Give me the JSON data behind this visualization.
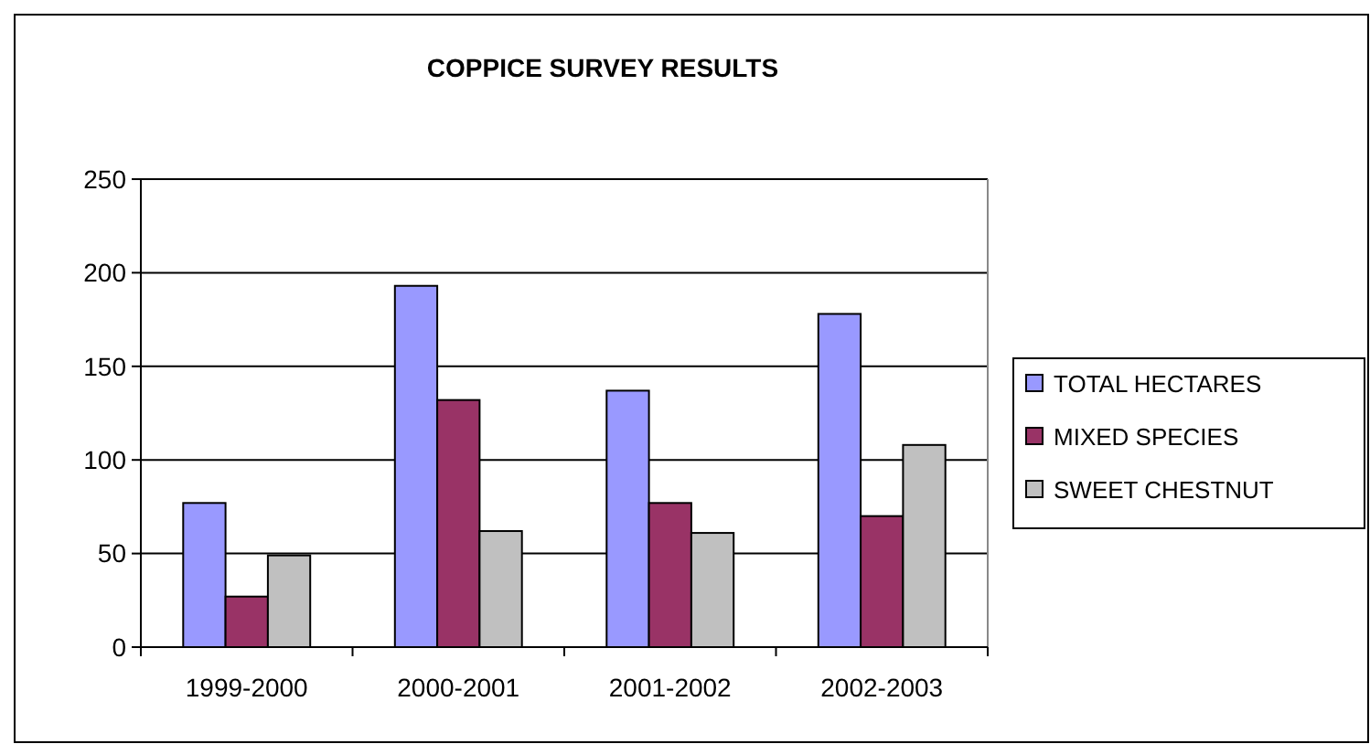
{
  "chart_data": {
    "type": "bar",
    "title": "COPPICE SURVEY RESULTS",
    "categories": [
      "1999-2000",
      "2000-2001",
      "2001-2002",
      "2002-2003"
    ],
    "series": [
      {
        "name": "TOTAL HECTARES",
        "color": "#9999ff",
        "values": [
          77,
          193,
          137,
          178
        ]
      },
      {
        "name": "MIXED SPECIES",
        "color": "#993366",
        "values": [
          27,
          132,
          77,
          70
        ]
      },
      {
        "name": "SWEET CHESTNUT",
        "color": "#c0c0c0",
        "values": [
          49,
          62,
          61,
          108
        ]
      }
    ],
    "ylim": [
      0,
      250
    ],
    "yticks": [
      0,
      50,
      100,
      150,
      200,
      250
    ],
    "grid": "y",
    "legend": "right"
  }
}
